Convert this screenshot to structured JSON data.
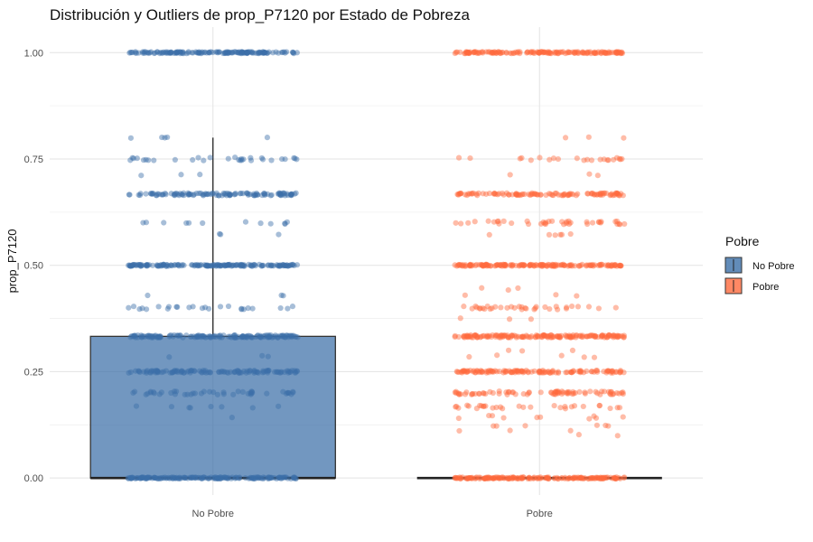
{
  "chart_data": {
    "type": "boxplot-jitter",
    "title": "Distribución y Outliers de prop_P7120 por Estado de Pobreza",
    "xlabel": "",
    "ylabel": "prop_P7120",
    "ylim": [
      -0.04,
      1.06
    ],
    "y_ticks": [
      0.0,
      0.25,
      0.5,
      0.75,
      1.0
    ],
    "y_tick_labels": [
      "0.00",
      "0.25",
      "0.50",
      "0.75",
      "1.00"
    ],
    "categories": [
      "No Pobre",
      "Pobre"
    ],
    "grid": true,
    "legend": {
      "title": "Pobre",
      "position": "right",
      "entries": [
        "No Pobre",
        "Pobre"
      ]
    },
    "colors": {
      "No Pobre": "#3b6fa8",
      "Pobre": "#ff6a3d"
    },
    "boxes": [
      {
        "category": "No Pobre",
        "min": 0.0,
        "q1": 0.0,
        "median": 0.0,
        "q3": 0.333,
        "whisker_high": 0.8
      },
      {
        "category": "Pobre",
        "min": 0.0,
        "q1": 0.0,
        "median": 0.0,
        "q3": 0.0,
        "whisker_high": 0.0
      }
    ],
    "jitter_levels": {
      "No Pobre": [
        {
          "y": 1.0,
          "n": 160,
          "spread": 0.002
        },
        {
          "y": 0.75,
          "n": 30,
          "spread": 0.004
        },
        {
          "y": 0.8,
          "n": 5,
          "spread": 0.002
        },
        {
          "y": 0.714,
          "n": 3,
          "spread": 0.003
        },
        {
          "y": 0.667,
          "n": 120,
          "spread": 0.003
        },
        {
          "y": 0.6,
          "n": 12,
          "spread": 0.003
        },
        {
          "y": 0.571,
          "n": 3,
          "spread": 0.003
        },
        {
          "y": 0.5,
          "n": 180,
          "spread": 0.002
        },
        {
          "y": 0.429,
          "n": 3,
          "spread": 0.003
        },
        {
          "y": 0.4,
          "n": 25,
          "spread": 0.004
        },
        {
          "y": 0.333,
          "n": 160,
          "spread": 0.003
        },
        {
          "y": 0.286,
          "n": 3,
          "spread": 0.003
        },
        {
          "y": 0.25,
          "n": 120,
          "spread": 0.003
        },
        {
          "y": 0.2,
          "n": 45,
          "spread": 0.004
        },
        {
          "y": 0.167,
          "n": 8,
          "spread": 0.002
        },
        {
          "y": 0.143,
          "n": 1,
          "spread": 0.001
        },
        {
          "y": 0.0,
          "n": 180,
          "spread": 0.002
        }
      ],
      "Pobre": [
        {
          "y": 1.0,
          "n": 160,
          "spread": 0.002
        },
        {
          "y": 0.8,
          "n": 3,
          "spread": 0.002
        },
        {
          "y": 0.75,
          "n": 22,
          "spread": 0.004
        },
        {
          "y": 0.714,
          "n": 3,
          "spread": 0.003
        },
        {
          "y": 0.667,
          "n": 110,
          "spread": 0.003
        },
        {
          "y": 0.6,
          "n": 40,
          "spread": 0.004
        },
        {
          "y": 0.571,
          "n": 6,
          "spread": 0.003
        },
        {
          "y": 0.5,
          "n": 170,
          "spread": 0.002
        },
        {
          "y": 0.444,
          "n": 3,
          "spread": 0.003
        },
        {
          "y": 0.429,
          "n": 3,
          "spread": 0.003
        },
        {
          "y": 0.4,
          "n": 35,
          "spread": 0.004
        },
        {
          "y": 0.375,
          "n": 3,
          "spread": 0.003
        },
        {
          "y": 0.333,
          "n": 170,
          "spread": 0.003
        },
        {
          "y": 0.3,
          "n": 3,
          "spread": 0.002
        },
        {
          "y": 0.286,
          "n": 5,
          "spread": 0.003
        },
        {
          "y": 0.25,
          "n": 130,
          "spread": 0.003
        },
        {
          "y": 0.2,
          "n": 80,
          "spread": 0.004
        },
        {
          "y": 0.167,
          "n": 30,
          "spread": 0.004
        },
        {
          "y": 0.143,
          "n": 10,
          "spread": 0.004
        },
        {
          "y": 0.125,
          "n": 6,
          "spread": 0.003
        },
        {
          "y": 0.111,
          "n": 3,
          "spread": 0.002
        },
        {
          "y": 0.1,
          "n": 2,
          "spread": 0.002
        },
        {
          "y": 0.0,
          "n": 180,
          "spread": 0.002
        }
      ]
    }
  }
}
